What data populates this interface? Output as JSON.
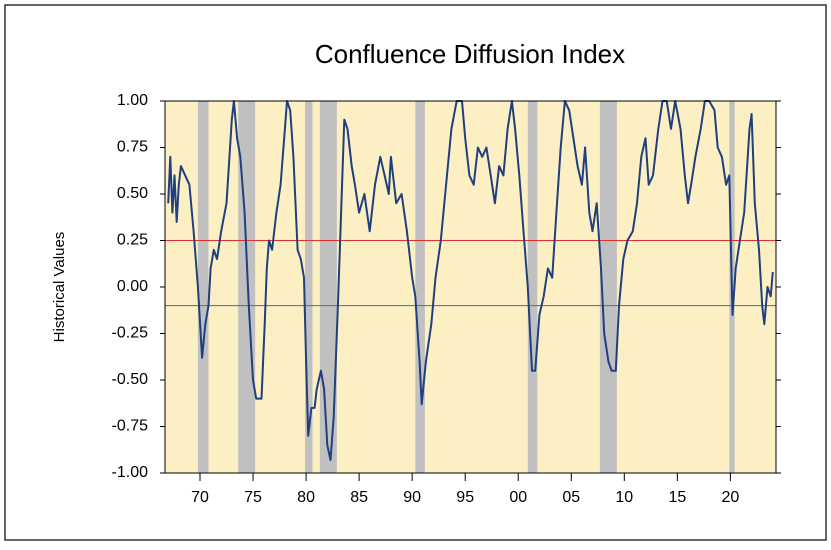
{
  "chart_data": {
    "type": "line",
    "title": "Confluence Diffusion Index",
    "ylabel": "Historical Values",
    "xlim": [
      1966.7,
      2024.3
    ],
    "ylim": [
      -1,
      1
    ],
    "xticks": [
      {
        "value": 1970,
        "label": "70"
      },
      {
        "value": 1975,
        "label": "75"
      },
      {
        "value": 1980,
        "label": "80"
      },
      {
        "value": 1985,
        "label": "85"
      },
      {
        "value": 1990,
        "label": "90"
      },
      {
        "value": 1995,
        "label": "95"
      },
      {
        "value": 2000,
        "label": "00"
      },
      {
        "value": 2005,
        "label": "05"
      },
      {
        "value": 2010,
        "label": "10"
      },
      {
        "value": 2015,
        "label": "15"
      },
      {
        "value": 2020,
        "label": "20"
      }
    ],
    "yticks": [
      {
        "value": 1,
        "label": "1.00"
      },
      {
        "value": 0.75,
        "label": "0.75"
      },
      {
        "value": 0.5,
        "label": "0.50"
      },
      {
        "value": 0.25,
        "label": "0.25"
      },
      {
        "value": 0,
        "label": "0.00"
      },
      {
        "value": -0.25,
        "label": "-0.25"
      },
      {
        "value": -0.5,
        "label": "-0.50"
      },
      {
        "value": -0.75,
        "label": "-0.75"
      },
      {
        "value": -1,
        "label": "-1.00"
      }
    ],
    "recessions": [
      [
        1969.8,
        1970.8
      ],
      [
        1973.6,
        1975.2
      ],
      [
        1979.9,
        1980.6
      ],
      [
        1981.3,
        1982.9
      ],
      [
        1990.3,
        1991.2
      ],
      [
        2000.9,
        2001.8
      ],
      [
        2007.7,
        2009.3
      ],
      [
        2019.9,
        2020.4
      ]
    ],
    "recession_color": "#c0c0c0",
    "reference_lines": [
      {
        "value": 0.25,
        "color": "#e03030"
      },
      {
        "value": -0.1,
        "color": "#2a7ab0"
      }
    ],
    "x": [
      1967.0,
      1967.2,
      1967.4,
      1967.6,
      1967.8,
      1968.0,
      1968.2,
      1968.6,
      1969.0,
      1969.4,
      1969.8,
      1970.2,
      1970.5,
      1970.8,
      1971.0,
      1971.3,
      1971.6,
      1972.0,
      1972.5,
      1973.0,
      1973.2,
      1973.5,
      1973.8,
      1974.2,
      1974.6,
      1975.0,
      1975.3,
      1975.8,
      1976.1,
      1976.3,
      1976.5,
      1976.8,
      1977.2,
      1977.6,
      1978.0,
      1978.2,
      1978.5,
      1978.8,
      1979.2,
      1979.5,
      1979.8,
      1980.0,
      1980.2,
      1980.5,
      1980.8,
      1981.0,
      1981.4,
      1981.7,
      1982.0,
      1982.3,
      1982.6,
      1983.0,
      1983.3,
      1983.6,
      1983.9,
      1984.3,
      1984.6,
      1985.0,
      1985.5,
      1986.0,
      1986.5,
      1987.0,
      1987.4,
      1987.8,
      1988.0,
      1988.5,
      1989.0,
      1989.5,
      1990.0,
      1990.3,
      1990.7,
      1990.9,
      1991.3,
      1991.8,
      1992.2,
      1992.7,
      1993.2,
      1993.7,
      1994.2,
      1994.7,
      1995.0,
      1995.4,
      1995.8,
      1996.2,
      1996.6,
      1997.0,
      1997.4,
      1997.8,
      1998.2,
      1998.6,
      1999.0,
      1999.4,
      1999.7,
      2000.1,
      2000.5,
      2000.9,
      2001.3,
      2001.6,
      2002.0,
      2002.4,
      2002.8,
      2003.2,
      2003.6,
      2004.0,
      2004.4,
      2004.8,
      2005.2,
      2005.6,
      2006.0,
      2006.3,
      2006.7,
      2007.0,
      2007.4,
      2007.8,
      2008.1,
      2008.5,
      2008.8,
      2009.2,
      2009.5,
      2009.9,
      2010.3,
      2010.8,
      2011.2,
      2011.6,
      2012.0,
      2012.3,
      2012.7,
      2013.2,
      2013.6,
      2014.0,
      2014.4,
      2014.8,
      2015.3,
      2015.7,
      2016.0,
      2016.3,
      2016.7,
      2017.2,
      2017.6,
      2018.0,
      2018.5,
      2018.8,
      2019.2,
      2019.6,
      2019.9,
      2020.2,
      2020.5,
      2020.9,
      2021.3,
      2021.8,
      2022.0,
      2022.3,
      2022.7,
      2023.0,
      2023.2,
      2023.5,
      2023.8,
      2024.0
    ],
    "series": [
      {
        "color": "#1f3f7f",
        "values": [
          0.45,
          0.7,
          0.4,
          0.6,
          0.35,
          0.55,
          0.65,
          0.6,
          0.55,
          0.3,
          0.0,
          -0.38,
          -0.2,
          -0.1,
          0.1,
          0.2,
          0.15,
          0.3,
          0.45,
          0.9,
          1.0,
          0.8,
          0.7,
          0.4,
          -0.1,
          -0.5,
          -0.6,
          -0.6,
          -0.2,
          0.1,
          0.25,
          0.2,
          0.4,
          0.55,
          0.85,
          1.0,
          0.95,
          0.7,
          0.2,
          0.15,
          0.05,
          -0.4,
          -0.8,
          -0.65,
          -0.65,
          -0.55,
          -0.45,
          -0.55,
          -0.85,
          -0.93,
          -0.7,
          -0.1,
          0.4,
          0.9,
          0.85,
          0.65,
          0.55,
          0.4,
          0.5,
          0.3,
          0.55,
          0.7,
          0.6,
          0.5,
          0.7,
          0.45,
          0.5,
          0.3,
          0.05,
          -0.05,
          -0.4,
          -0.63,
          -0.4,
          -0.2,
          0.05,
          0.25,
          0.55,
          0.85,
          1.0,
          1.0,
          0.8,
          0.6,
          0.55,
          0.75,
          0.7,
          0.75,
          0.6,
          0.45,
          0.65,
          0.6,
          0.85,
          1.0,
          0.85,
          0.6,
          0.3,
          0.0,
          -0.45,
          -0.45,
          -0.15,
          -0.05,
          0.1,
          0.05,
          0.4,
          0.75,
          1.0,
          0.95,
          0.8,
          0.65,
          0.55,
          0.75,
          0.4,
          0.3,
          0.45,
          0.1,
          -0.25,
          -0.4,
          -0.45,
          -0.45,
          -0.1,
          0.15,
          0.25,
          0.3,
          0.45,
          0.7,
          0.8,
          0.55,
          0.6,
          0.85,
          1.0,
          1.0,
          0.85,
          1.0,
          0.85,
          0.6,
          0.45,
          0.55,
          0.7,
          0.85,
          1.0,
          1.0,
          0.95,
          0.75,
          0.7,
          0.55,
          0.6,
          -0.15,
          0.1,
          0.25,
          0.4,
          0.85,
          0.93,
          0.45,
          0.2,
          -0.1,
          -0.2,
          0.0,
          -0.05,
          0.08
        ]
      }
    ]
  }
}
